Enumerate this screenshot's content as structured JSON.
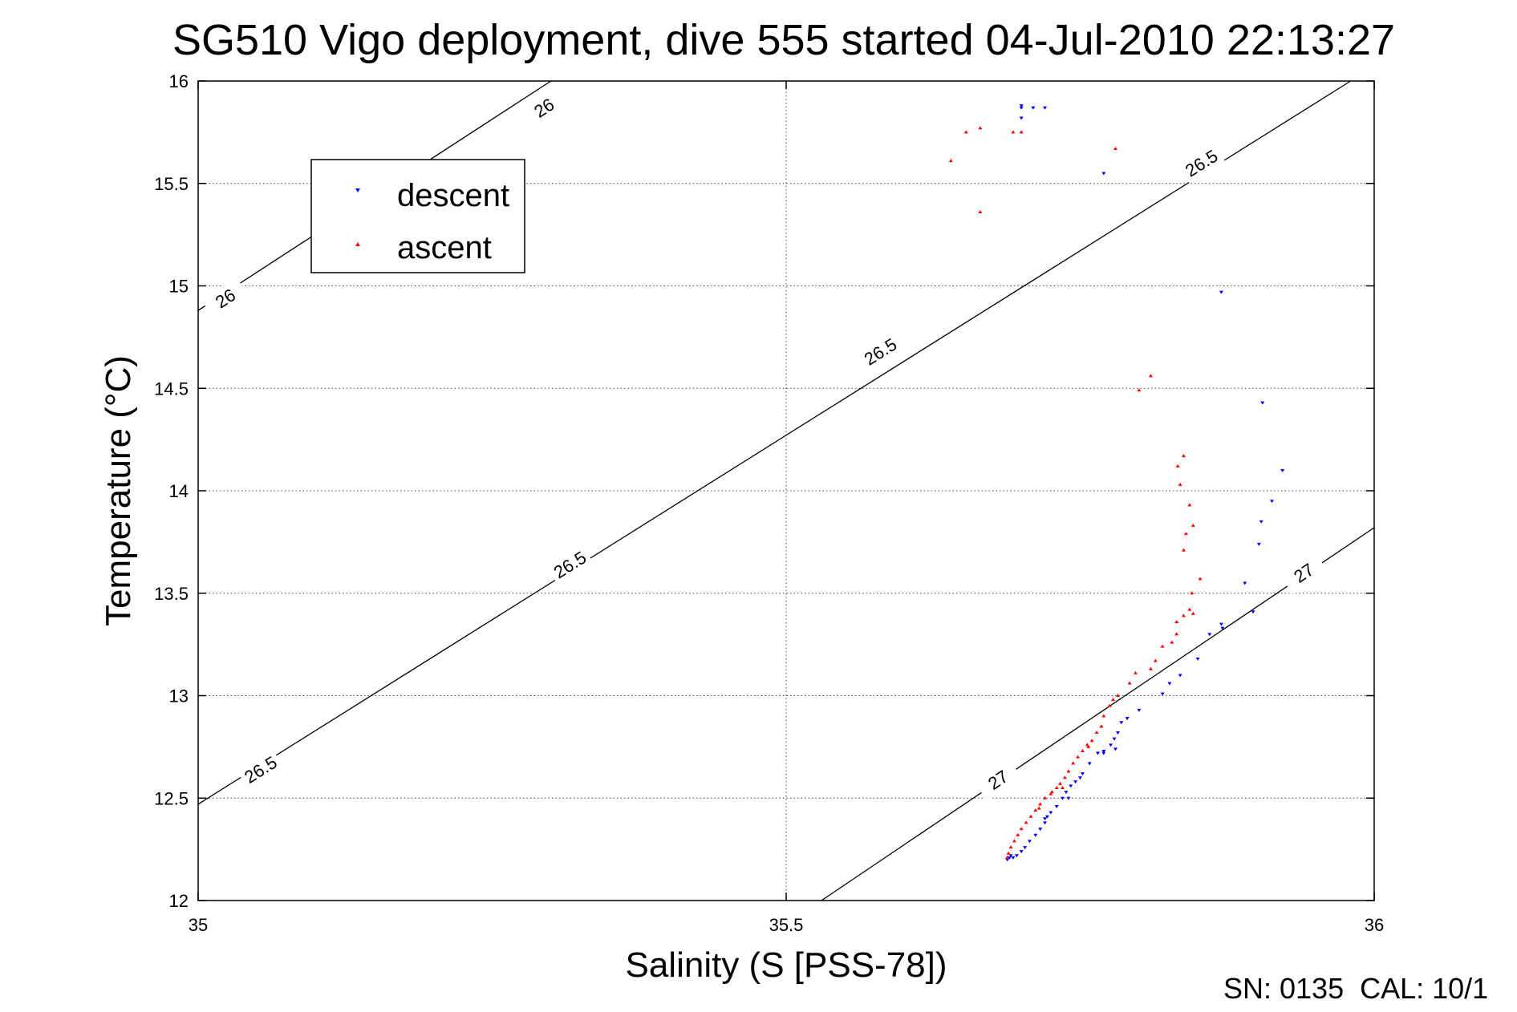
{
  "chart_data": {
    "type": "scatter",
    "title": "SG510 Vigo deployment, dive 555 started 04-Jul-2010 22:13:27",
    "xlabel": "Salinity (S [PSS-78])",
    "ylabel": "Temperature (°C)",
    "xlim": [
      35,
      36
    ],
    "ylim": [
      12,
      16
    ],
    "x_ticks": [
      35,
      35.5,
      36
    ],
    "x_tick_labels": [
      "35",
      "35.5",
      "36"
    ],
    "y_ticks": [
      12,
      12.5,
      13,
      13.5,
      14,
      14.5,
      15,
      15.5,
      16
    ],
    "y_tick_labels": [
      "12",
      "12.5",
      "13",
      "13.5",
      "14",
      "14.5",
      "15",
      "15.5",
      "16"
    ],
    "grid": true,
    "legend_position": "upper-left",
    "footer": "SN: 0135  CAL: 10/1",
    "contours": [
      {
        "label": "26",
        "points": [
          [
            35,
            14.88
          ],
          [
            35.3,
            16.0
          ]
        ],
        "label_at": [
          [
            35.023,
            14.94
          ],
          [
            35.294,
            15.87
          ]
        ]
      },
      {
        "label": "26.5",
        "points": [
          [
            35,
            12.47
          ],
          [
            35.98,
            16.0
          ]
        ],
        "label_at": [
          [
            35.053,
            12.64
          ],
          [
            35.316,
            13.64
          ],
          [
            35.58,
            14.68
          ],
          [
            35.853,
            15.6
          ]
        ]
      },
      {
        "label": "27",
        "points": [
          [
            35.53,
            12.0
          ],
          [
            36,
            13.82
          ]
        ],
        "label_at": [
          [
            35.68,
            12.59
          ],
          [
            35.94,
            13.6
          ]
        ]
      }
    ],
    "series": [
      {
        "name": "descent",
        "color": "#0000ff",
        "marker": "triangle-down",
        "points": [
          [
            35.7,
            15.88
          ],
          [
            35.7,
            15.87
          ],
          [
            35.71,
            15.87
          ],
          [
            35.72,
            15.87
          ],
          [
            35.7,
            15.82
          ],
          [
            35.77,
            15.55
          ],
          [
            35.87,
            14.97
          ],
          [
            35.905,
            14.43
          ],
          [
            35.922,
            14.1
          ],
          [
            35.913,
            13.95
          ],
          [
            35.904,
            13.85
          ],
          [
            35.902,
            13.74
          ],
          [
            35.89,
            13.55
          ],
          [
            35.897,
            13.41
          ],
          [
            35.87,
            13.35
          ],
          [
            35.871,
            13.33
          ],
          [
            35.86,
            13.3
          ],
          [
            35.85,
            13.18
          ],
          [
            35.835,
            13.1
          ],
          [
            35.826,
            13.06
          ],
          [
            35.82,
            13.01
          ],
          [
            35.8,
            12.93
          ],
          [
            35.79,
            12.89
          ],
          [
            35.785,
            12.87
          ],
          [
            35.782,
            12.82
          ],
          [
            35.779,
            12.79
          ],
          [
            35.776,
            12.76
          ],
          [
            35.77,
            12.73
          ],
          [
            35.765,
            12.72
          ],
          [
            35.758,
            12.67
          ],
          [
            35.752,
            12.62
          ],
          [
            35.746,
            12.58
          ],
          [
            35.742,
            12.56
          ],
          [
            35.738,
            12.53
          ],
          [
            35.735,
            12.5
          ],
          [
            35.73,
            12.46
          ],
          [
            35.725,
            12.43
          ],
          [
            35.722,
            12.41
          ],
          [
            35.72,
            12.38
          ],
          [
            35.716,
            12.35
          ],
          [
            35.712,
            12.32
          ],
          [
            35.707,
            12.29
          ],
          [
            35.703,
            12.26
          ],
          [
            35.7,
            12.24
          ],
          [
            35.696,
            12.22
          ],
          [
            35.693,
            12.21
          ],
          [
            35.688,
            12.2
          ],
          [
            35.72,
            12.4
          ],
          [
            35.74,
            12.5
          ],
          [
            35.78,
            12.74
          ],
          [
            35.77,
            12.72
          ],
          [
            35.75,
            12.6
          ],
          [
            35.69,
            12.21
          ],
          [
            35.691,
            12.22
          ]
        ]
      },
      {
        "name": "ascent",
        "color": "#ff0000",
        "marker": "triangle-up",
        "points": [
          [
            35.64,
            15.61
          ],
          [
            35.653,
            15.75
          ],
          [
            35.665,
            15.77
          ],
          [
            35.693,
            15.75
          ],
          [
            35.7,
            15.75
          ],
          [
            35.78,
            15.67
          ],
          [
            35.665,
            15.36
          ],
          [
            35.81,
            14.56
          ],
          [
            35.8,
            14.49
          ],
          [
            35.838,
            14.17
          ],
          [
            35.833,
            14.12
          ],
          [
            35.835,
            14.03
          ],
          [
            35.843,
            13.93
          ],
          [
            35.846,
            13.83
          ],
          [
            35.84,
            13.79
          ],
          [
            35.838,
            13.71
          ],
          [
            35.852,
            13.57
          ],
          [
            35.845,
            13.5
          ],
          [
            35.843,
            13.42
          ],
          [
            35.846,
            13.4
          ],
          [
            35.838,
            13.39
          ],
          [
            35.832,
            13.36
          ],
          [
            35.832,
            13.3
          ],
          [
            35.828,
            13.26
          ],
          [
            35.82,
            13.24
          ],
          [
            35.814,
            13.17
          ],
          [
            35.81,
            13.13
          ],
          [
            35.797,
            13.11
          ],
          [
            35.792,
            13.06
          ],
          [
            35.782,
            13.0
          ],
          [
            35.778,
            12.98
          ],
          [
            35.775,
            12.95
          ],
          [
            35.77,
            12.9
          ],
          [
            35.768,
            12.85
          ],
          [
            35.764,
            12.82
          ],
          [
            35.76,
            12.78
          ],
          [
            35.756,
            12.76
          ],
          [
            35.752,
            12.73
          ],
          [
            35.748,
            12.7
          ],
          [
            35.744,
            12.67
          ],
          [
            35.74,
            12.63
          ],
          [
            35.737,
            12.6
          ],
          [
            35.733,
            12.57
          ],
          [
            35.73,
            12.55
          ],
          [
            35.726,
            12.53
          ],
          [
            35.72,
            12.5
          ],
          [
            35.716,
            12.47
          ],
          [
            35.712,
            12.44
          ],
          [
            35.708,
            12.41
          ],
          [
            35.704,
            12.38
          ],
          [
            35.7,
            12.35
          ],
          [
            35.697,
            12.32
          ],
          [
            35.694,
            12.29
          ],
          [
            35.691,
            12.26
          ],
          [
            35.689,
            12.23
          ],
          [
            35.688,
            12.21
          ],
          [
            35.715,
            12.45
          ],
          [
            35.735,
            12.55
          ],
          [
            35.757,
            12.75
          ],
          [
            35.725,
            12.52
          ]
        ]
      }
    ]
  }
}
